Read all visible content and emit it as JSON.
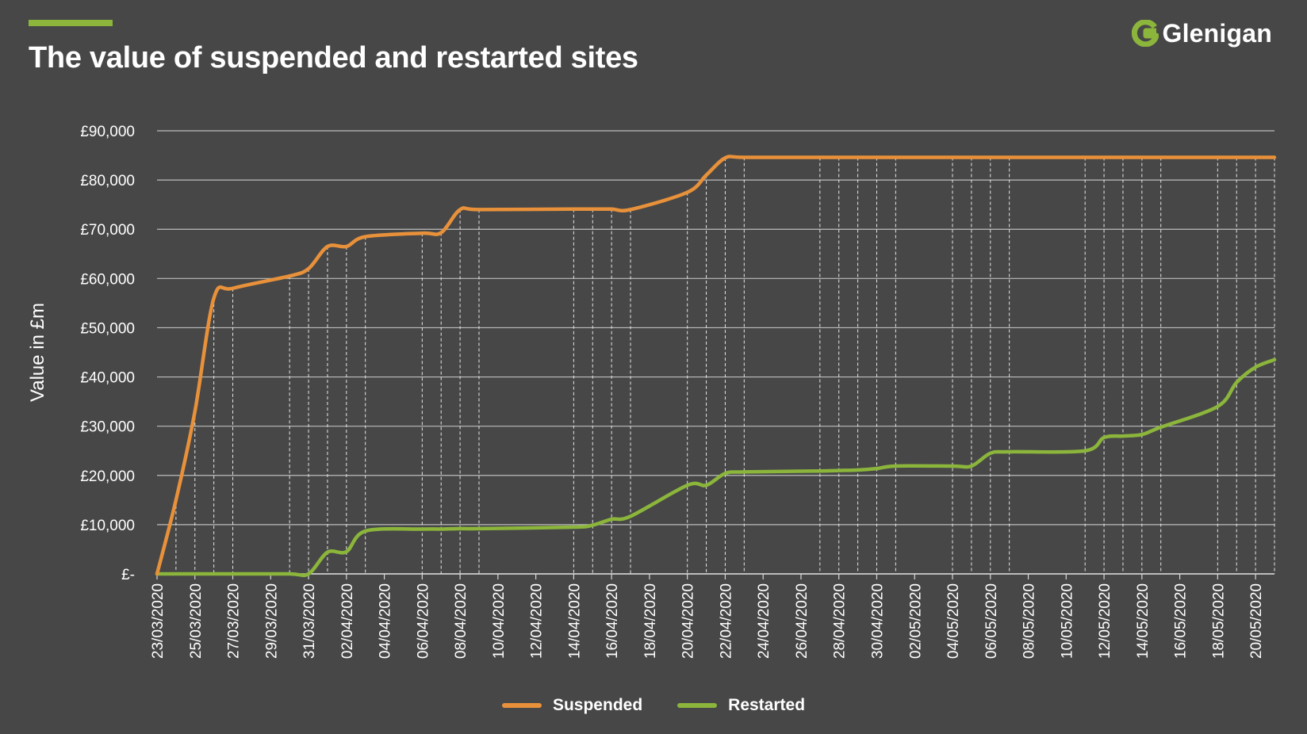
{
  "header": {
    "title": "The value of suspended and restarted sites",
    "logo_text": "Glenigan",
    "logo_icon": "glenigan-g-icon",
    "accent_color": "#8bb53b"
  },
  "chart_data": {
    "type": "line",
    "title": "The value of suspended and restarted sites",
    "xlabel": "",
    "ylabel": "Value in £m",
    "ylim": [
      0,
      90000
    ],
    "yticks": [
      0,
      10000,
      20000,
      30000,
      40000,
      50000,
      60000,
      70000,
      80000,
      90000
    ],
    "ytick_labels": [
      "£-",
      "£10,000",
      "£20,000",
      "£30,000",
      "£40,000",
      "£50,000",
      "£60,000",
      "£70,000",
      "£80,000",
      "£90,000"
    ],
    "x_start": "23/03/2020",
    "x_end": "21/05/2020",
    "xtick_labels": [
      "23/03/2020",
      "25/03/2020",
      "27/03/2020",
      "29/03/2020",
      "31/03/2020",
      "02/04/2020",
      "04/04/2020",
      "06/04/2020",
      "08/04/2020",
      "10/04/2020",
      "12/04/2020",
      "14/04/2020",
      "16/04/2020",
      "18/04/2020",
      "20/04/2020",
      "22/04/2020",
      "24/04/2020",
      "26/04/2020",
      "28/04/2020",
      "30/04/2020",
      "02/05/2020",
      "04/05/2020",
      "06/05/2020",
      "08/05/2020",
      "10/05/2020",
      "12/05/2020",
      "14/05/2020",
      "16/05/2020",
      "18/05/2020",
      "20/05/2020"
    ],
    "x": [
      "23/03/2020",
      "24/03/2020",
      "25/03/2020",
      "26/03/2020",
      "27/03/2020",
      "30/03/2020",
      "31/03/2020",
      "01/04/2020",
      "02/04/2020",
      "03/04/2020",
      "06/04/2020",
      "07/04/2020",
      "08/04/2020",
      "09/04/2020",
      "14/04/2020",
      "15/04/2020",
      "16/04/2020",
      "17/04/2020",
      "20/04/2020",
      "21/04/2020",
      "22/04/2020",
      "23/04/2020",
      "27/04/2020",
      "28/04/2020",
      "29/04/2020",
      "30/04/2020",
      "01/05/2020",
      "04/05/2020",
      "05/05/2020",
      "06/05/2020",
      "07/05/2020",
      "11/05/2020",
      "12/05/2020",
      "13/05/2020",
      "14/05/2020",
      "15/05/2020",
      "18/05/2020",
      "19/05/2020",
      "20/05/2020",
      "21/05/2020"
    ],
    "series": [
      {
        "name": "Suspended",
        "color": "#e8913a",
        "values": [
          0,
          15000,
          33000,
          56000,
          58000,
          60500,
          62000,
          66500,
          66500,
          68500,
          69200,
          69300,
          74000,
          74000,
          74100,
          74100,
          74100,
          74000,
          77500,
          81000,
          84500,
          84600,
          84600,
          84600,
          84600,
          84600,
          84600,
          84600,
          84600,
          84600,
          84600,
          84600,
          84600,
          84600,
          84600,
          84600,
          84600,
          84600,
          84600,
          84600
        ]
      },
      {
        "name": "Restarted",
        "color": "#8bb53b",
        "values": [
          0,
          0,
          0,
          0,
          0,
          0,
          0,
          4400,
          4500,
          8700,
          9100,
          9100,
          9200,
          9200,
          9500,
          9900,
          11100,
          11700,
          18000,
          18000,
          20400,
          20700,
          20900,
          21000,
          21100,
          21400,
          21900,
          21900,
          21900,
          24500,
          24800,
          25000,
          27700,
          28000,
          28300,
          29800,
          34000,
          38900,
          42000,
          43500
        ]
      }
    ],
    "legend_position": "bottom",
    "grid": true
  }
}
